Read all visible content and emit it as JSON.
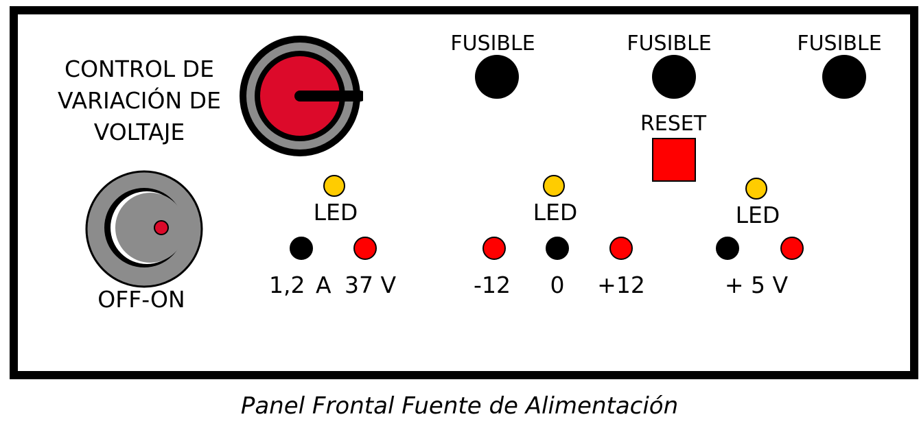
{
  "panel": {
    "voltage_control_label_lines": [
      "CONTROL DE",
      "VARIACIÓN DE",
      "VOLTAJE"
    ],
    "power_switch_label": "OFF-ON",
    "fuse_label": "FUSIBLE",
    "reset_label": "RESET",
    "led_label": "LED",
    "groups": [
      {
        "values": [
          "1,2",
          "A",
          "37 V"
        ]
      },
      {
        "values": [
          "-12",
          "0",
          "+12"
        ]
      },
      {
        "value": "+ 5 V"
      }
    ]
  },
  "caption": "Panel Frontal Fuente de Alimentación",
  "colors": {
    "knob_red": "#dc0a2a",
    "knob_gray": "#8c8c8c",
    "led_yellow": "#ffcc00",
    "terminal_red": "#ff0000",
    "reset_red": "#ff0000"
  }
}
